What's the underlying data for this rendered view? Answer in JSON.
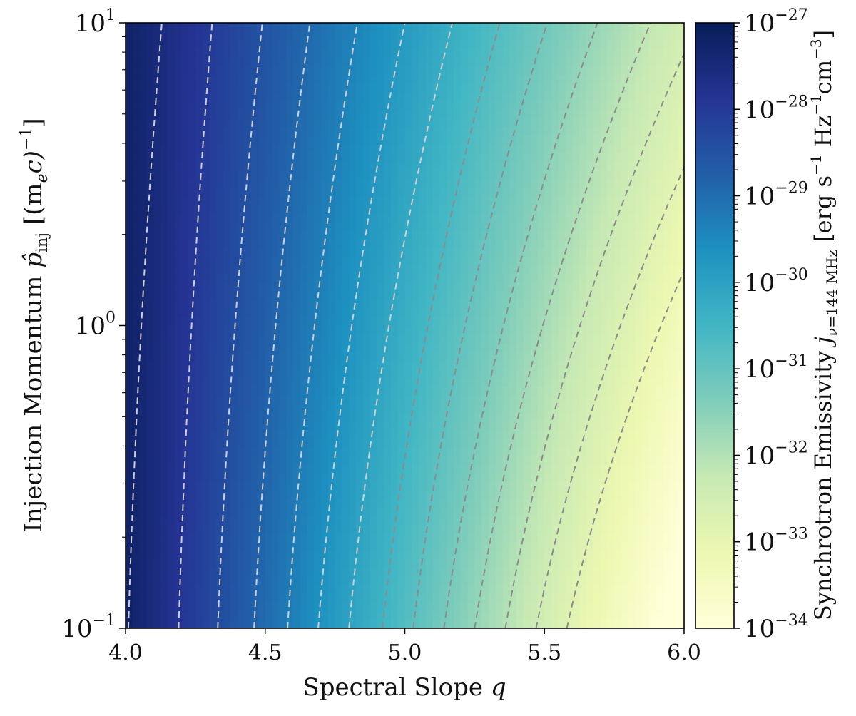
{
  "chart_data": {
    "type": "heatmap",
    "xlabel": "Spectral Slope  q",
    "ylabel": "Injection Momentum  p̂_inj  [(m_e c)^−1]",
    "ylabel_parts": {
      "main": "Injection Momentum  ",
      "sym": "p̂",
      "sub": "inj",
      "unit_open": "  [(m",
      "unit_sub": "e",
      "unit_mid": "c)",
      "unit_sup": "−1",
      "unit_close": "]"
    },
    "colorbar_label": "Synchrotron Emissivity  j_{ν=144 MHz}  [erg s⁻¹ Hz⁻¹cm⁻³]",
    "colorbar_label_parts": {
      "main": "Synchrotron Emissivity  ",
      "sym": "j",
      "sub": "ν=144 MHz",
      "units": "  [erg s",
      "sup1": "−1",
      "u2": " Hz",
      "sup2": "−1",
      "u3": "cm",
      "sup3": "−3",
      "u4": "]"
    },
    "x": {
      "min": 4.0,
      "max": 6.0,
      "scale": "linear",
      "ticks": [
        4.0,
        4.5,
        5.0,
        5.5,
        6.0
      ],
      "tick_labels": [
        "4.0",
        "4.5",
        "5.0",
        "5.5",
        "6.0"
      ]
    },
    "y": {
      "min": 0.1,
      "max": 10,
      "scale": "log",
      "ticks": [
        0.1,
        1,
        10
      ],
      "tick_labels": [
        {
          "base": "10",
          "exp": "−1"
        },
        {
          "base": "10",
          "exp": "0"
        },
        {
          "base": "10",
          "exp": "1"
        }
      ]
    },
    "colorbar": {
      "scale": "log",
      "min_exp": -34,
      "max_exp": -27,
      "tick_labels": [
        {
          "base": "10",
          "exp": "−27"
        },
        {
          "base": "10",
          "exp": "−28"
        },
        {
          "base": "10",
          "exp": "−29"
        },
        {
          "base": "10",
          "exp": "−30"
        },
        {
          "base": "10",
          "exp": "−31"
        },
        {
          "base": "10",
          "exp": "−32"
        },
        {
          "base": "10",
          "exp": "−33"
        },
        {
          "base": "10",
          "exp": "−34"
        }
      ],
      "colormap": "YlGnBu",
      "colormap_stops": [
        "#ffffd9",
        "#edf8b1",
        "#c7e9b4",
        "#7fcdbb",
        "#41b6c4",
        "#1d91c0",
        "#225ea8",
        "#253494",
        "#081d58"
      ]
    },
    "contours": {
      "style": "dashed",
      "left_color": "#cfcfcf",
      "right_color": "#8c8c8c",
      "lines": [
        {
          "q_bottom": 4.01,
          "q_top": 4.13
        },
        {
          "q_bottom": 4.19,
          "q_top": 4.31
        },
        {
          "q_bottom": 4.33,
          "q_top": 4.49
        },
        {
          "q_bottom": 4.46,
          "q_top": 4.66
        },
        {
          "q_bottom": 4.58,
          "q_top": 4.83
        },
        {
          "q_bottom": 4.69,
          "q_top": 5.0
        },
        {
          "q_bottom": 4.8,
          "q_top": 5.17
        },
        {
          "q_bottom": 4.92,
          "q_top": 5.34
        },
        {
          "q_bottom": 5.03,
          "q_top": 5.51
        },
        {
          "q_bottom": 5.14,
          "q_top": 5.69
        },
        {
          "q_bottom": 5.25,
          "q_top": 5.88
        },
        {
          "q_bottom": 5.36,
          "q_p_right": 0.8,
          "q_top": 6.05
        },
        {
          "q_bottom": 5.47,
          "q_top": 6.25
        },
        {
          "q_bottom": 5.58,
          "q_top": 6.45
        }
      ]
    },
    "model": {
      "log10_emissivity_at_q4_p1": -27.2,
      "dlog_per_q": -3.1,
      "dlog_per_decade_p_coeff": 0.45
    },
    "grid": false,
    "legend": "none"
  }
}
